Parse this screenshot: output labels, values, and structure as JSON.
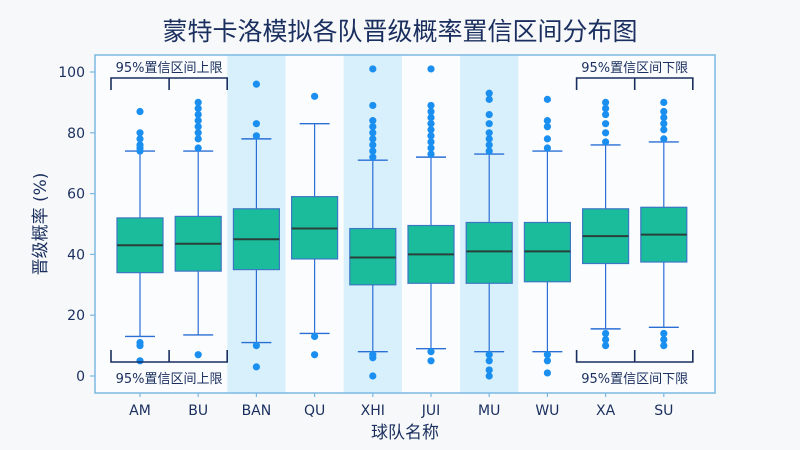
{
  "title": "蒙特卡洛模拟各队晋级概率置信区间分布图",
  "chart_data": {
    "type": "box",
    "title": "蒙特卡洛模拟各队晋级概率置信区间分布图",
    "xlabel": "球队名称",
    "ylabel": "晋级概率 (%)",
    "ylim": [
      0,
      100
    ],
    "yticks": [
      0,
      20,
      40,
      60,
      80,
      100
    ],
    "grid": false,
    "categories": [
      "AM",
      "BU",
      "BAN",
      "QU",
      "XHI",
      "JUI",
      "MU",
      "WU",
      "XA",
      "SU"
    ],
    "highlighted_categories": [
      "BAN",
      "XHI",
      "MU"
    ],
    "boxes": [
      {
        "q1": 34,
        "median": 43,
        "q3": 52,
        "whisker_low": 13,
        "whisker_high": 74,
        "outliers": [
          5,
          10,
          11,
          74,
          75,
          76,
          78,
          80,
          87
        ]
      },
      {
        "q1": 34.5,
        "median": 43.5,
        "q3": 52.5,
        "whisker_low": 13.5,
        "whisker_high": 74,
        "outliers": [
          7,
          75,
          78,
          80,
          82,
          84,
          86,
          88,
          90
        ]
      },
      {
        "q1": 35,
        "median": 45,
        "q3": 55,
        "whisker_low": 11,
        "whisker_high": 78,
        "outliers": [
          3,
          10,
          79,
          83,
          96
        ]
      },
      {
        "q1": 38.5,
        "median": 48.5,
        "q3": 59,
        "whisker_low": 14,
        "whisker_high": 83,
        "outliers": [
          7,
          13,
          92
        ]
      },
      {
        "q1": 30,
        "median": 39,
        "q3": 48.5,
        "whisker_low": 8,
        "whisker_high": 71,
        "outliers": [
          0,
          6,
          7,
          72,
          74,
          76,
          78,
          80,
          82,
          84,
          89,
          101
        ]
      },
      {
        "q1": 30.5,
        "median": 40,
        "q3": 49.5,
        "whisker_low": 9,
        "whisker_high": 72,
        "outliers": [
          5,
          8,
          73,
          75,
          77,
          79,
          81,
          83,
          85,
          87,
          89,
          101
        ]
      },
      {
        "q1": 30.5,
        "median": 41,
        "q3": 50.5,
        "whisker_low": 8,
        "whisker_high": 73,
        "outliers": [
          0,
          2,
          5,
          7,
          74,
          76,
          78,
          80,
          83,
          86,
          91,
          93
        ]
      },
      {
        "q1": 31,
        "median": 41,
        "q3": 50.5,
        "whisker_low": 8,
        "whisker_high": 74,
        "outliers": [
          1,
          5,
          7,
          75,
          78,
          82,
          84,
          91
        ]
      },
      {
        "q1": 37,
        "median": 46,
        "q3": 55,
        "whisker_low": 15.5,
        "whisker_high": 76,
        "outliers": [
          10,
          12,
          14,
          77,
          80,
          83,
          86,
          88,
          90
        ]
      },
      {
        "q1": 37.5,
        "median": 46.5,
        "q3": 55.5,
        "whisker_low": 16,
        "whisker_high": 77,
        "outliers": [
          10,
          12,
          14,
          78,
          81,
          83,
          85,
          87,
          90
        ]
      }
    ],
    "annotations": [
      {
        "text": "95%置信区间上限",
        "position": "top",
        "span": [
          "AM",
          "BU"
        ]
      },
      {
        "text": "95%置信区间上限",
        "position": "bottom",
        "span": [
          "AM",
          "BU"
        ]
      },
      {
        "text": "95%置信区间下限",
        "position": "top",
        "span": [
          "XA",
          "SU"
        ]
      },
      {
        "text": "95%置信区间下限",
        "position": "bottom",
        "span": [
          "XA",
          "SU"
        ]
      }
    ],
    "colors": {
      "box_fill": "#1bbc9b",
      "box_edge": "#3b77c4",
      "median": "#2b3f3a",
      "whisker": "#2a6fd6",
      "outlier": "#1a8ff0",
      "highlight_band": "#d8f0fb",
      "axis": "#7ab8e4",
      "text": "#1a2f5f"
    }
  }
}
